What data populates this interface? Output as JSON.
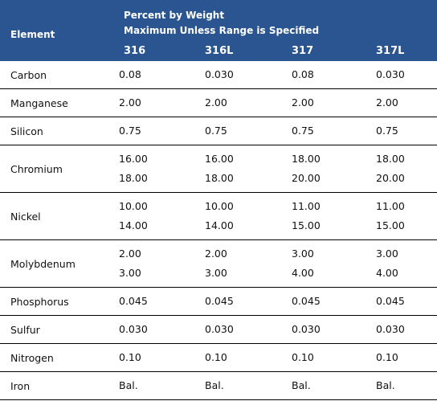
{
  "header": {
    "element_label": "Element",
    "group_line1": "Percent by Weight",
    "group_line2": "Maximum Unless Range is Specified",
    "grades": [
      "316",
      "316L",
      "317",
      "317L"
    ]
  },
  "rows": [
    {
      "element": "Carbon",
      "values": [
        [
          "0.08"
        ],
        [
          "0.030"
        ],
        [
          "0.08"
        ],
        [
          "0.030"
        ]
      ]
    },
    {
      "element": "Manganese",
      "values": [
        [
          "2.00"
        ],
        [
          "2.00"
        ],
        [
          "2.00"
        ],
        [
          "2.00"
        ]
      ]
    },
    {
      "element": "Silicon",
      "values": [
        [
          "0.75"
        ],
        [
          "0.75"
        ],
        [
          "0.75"
        ],
        [
          "0.75"
        ]
      ]
    },
    {
      "element": "Chromium",
      "values": [
        [
          "16.00",
          "18.00"
        ],
        [
          "16.00",
          "18.00"
        ],
        [
          "18.00",
          "20.00"
        ],
        [
          "18.00",
          "20.00"
        ]
      ]
    },
    {
      "element": "Nickel",
      "values": [
        [
          "10.00",
          "14.00"
        ],
        [
          "10.00",
          "14.00"
        ],
        [
          "11.00",
          "15.00"
        ],
        [
          "11.00",
          "15.00"
        ]
      ]
    },
    {
      "element": "Molybdenum",
      "values": [
        [
          "2.00",
          "3.00"
        ],
        [
          "2.00",
          "3.00"
        ],
        [
          "3.00",
          "4.00"
        ],
        [
          "3.00",
          "4.00"
        ]
      ]
    },
    {
      "element": "Phosphorus",
      "values": [
        [
          "0.045"
        ],
        [
          "0.045"
        ],
        [
          "0.045"
        ],
        [
          "0.045"
        ]
      ]
    },
    {
      "element": "Sulfur",
      "values": [
        [
          "0.030"
        ],
        [
          "0.030"
        ],
        [
          "0.030"
        ],
        [
          "0.030"
        ]
      ]
    },
    {
      "element": "Nitrogen",
      "values": [
        [
          "0.10"
        ],
        [
          "0.10"
        ],
        [
          "0.10"
        ],
        [
          "0.10"
        ]
      ]
    },
    {
      "element": "Iron",
      "values": [
        [
          "Bal."
        ],
        [
          "Bal."
        ],
        [
          "Bal."
        ],
        [
          "Bal."
        ]
      ]
    }
  ],
  "colors": {
    "header_bg": "#2a5591",
    "header_text": "#ffffff",
    "row_rule": "#000000"
  }
}
